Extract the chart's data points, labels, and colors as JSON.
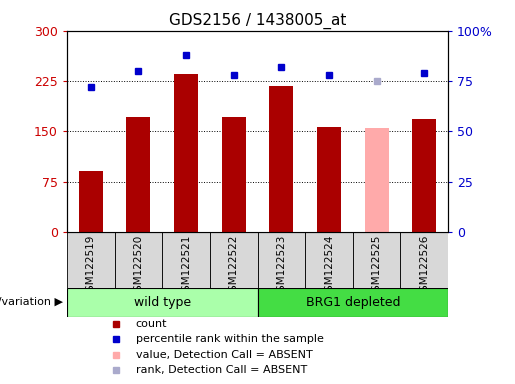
{
  "title": "GDS2156 / 1438005_at",
  "samples": [
    "GSM122519",
    "GSM122520",
    "GSM122521",
    "GSM122522",
    "GSM122523",
    "GSM122524",
    "GSM122525",
    "GSM122526"
  ],
  "bar_values": [
    90,
    172,
    235,
    172,
    218,
    157,
    155,
    168
  ],
  "bar_colors": [
    "#aa0000",
    "#aa0000",
    "#aa0000",
    "#aa0000",
    "#aa0000",
    "#aa0000",
    "#ffaaaa",
    "#aa0000"
  ],
  "dot_values": [
    72,
    80,
    88,
    78,
    82,
    78,
    75,
    79
  ],
  "dot_colors": [
    "#0000cc",
    "#0000cc",
    "#0000cc",
    "#0000cc",
    "#0000cc",
    "#0000cc",
    "#aaaacc",
    "#0000cc"
  ],
  "ylim_left": [
    0,
    300
  ],
  "ylim_right": [
    0,
    100
  ],
  "yticks_left": [
    0,
    75,
    150,
    225,
    300
  ],
  "yticks_right": [
    0,
    25,
    50,
    75,
    100
  ],
  "ytick_labels_left": [
    "0",
    "75",
    "150",
    "225",
    "300"
  ],
  "ytick_labels_right": [
    "0",
    "25",
    "50",
    "75",
    "100%"
  ],
  "grid_values": [
    75,
    150,
    225
  ],
  "groups": [
    {
      "label": "wild type",
      "start": 0,
      "end": 3,
      "color": "#aaffaa"
    },
    {
      "label": "BRG1 depleted",
      "start": 4,
      "end": 7,
      "color": "#44dd44"
    }
  ],
  "genotype_label": "genotype/variation",
  "legend_items": [
    {
      "color": "#aa0000",
      "label": "count"
    },
    {
      "color": "#0000cc",
      "label": "percentile rank within the sample"
    },
    {
      "color": "#ffaaaa",
      "label": "value, Detection Call = ABSENT"
    },
    {
      "color": "#aaaacc",
      "label": "rank, Detection Call = ABSENT"
    }
  ],
  "bar_width": 0.5,
  "plot_bg_color": "#ffffff",
  "xtick_bg_color": "#d8d8d8",
  "xtick_bg_border": "#888888"
}
